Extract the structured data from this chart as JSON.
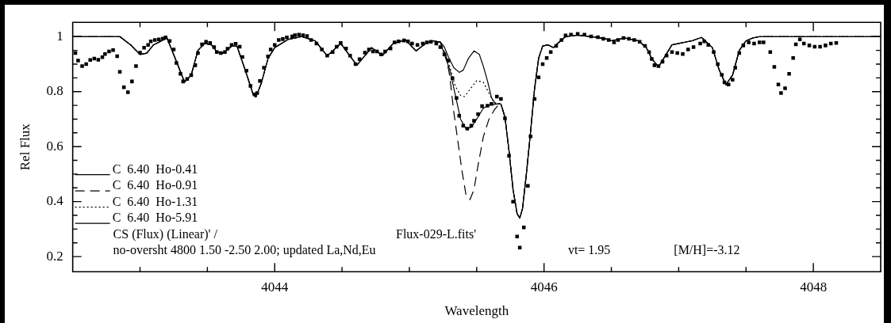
{
  "chart_data": {
    "type": "line",
    "xlabel": "Wavelength",
    "ylabel": "Rel Flux",
    "xlim": [
      4042.5,
      4048.5
    ],
    "ylim": [
      0.145,
      1.052
    ],
    "xticks": [
      {
        "value": 4043,
        "label": null
      },
      {
        "value": 4043.5,
        "label": null
      },
      4044,
      {
        "value": 4044.5,
        "label": null
      },
      {
        "value": 4045,
        "label": null
      },
      {
        "value": 4045.5,
        "label": null
      },
      4046,
      {
        "value": 4046.5,
        "label": null
      },
      {
        "value": 4047,
        "label": null
      },
      {
        "value": 4047.5,
        "label": null
      },
      4048
    ],
    "yticks": [
      0.2,
      {
        "value": 0.25,
        "label": null
      },
      {
        "value": 0.3,
        "label": null
      },
      {
        "value": 0.35,
        "label": null
      },
      0.4,
      {
        "value": 0.45,
        "label": null
      },
      {
        "value": 0.5,
        "label": null
      },
      {
        "value": 0.55,
        "label": null
      },
      0.6,
      {
        "value": 0.65,
        "label": null
      },
      {
        "value": 0.7,
        "label": null
      },
      {
        "value": 0.75,
        "label": null
      },
      0.8,
      {
        "value": 0.85,
        "label": null
      },
      {
        "value": 0.9,
        "label": null
      },
      {
        "value": 0.95,
        "label": null
      },
      1
    ],
    "grid": false,
    "legend": "bottom left",
    "annotations": [
      "CS (Flux) (Linear)' /",
      "Flux-029-L.fits'",
      "no-oversht 4800 1.50 -2.50 2.00; updated La,Nd,Eu",
      "vt= 1.95",
      "[M/H]=-3.12"
    ],
    "series": [
      {
        "type": "scatter",
        "marker": "square",
        "color": "#000000",
        "x": [
          4042.52,
          4042.54,
          4042.57,
          4042.6,
          4042.63,
          4042.66,
          4042.69,
          4042.72,
          4042.74,
          4042.77,
          4042.8,
          4042.83,
          4042.85,
          4042.88,
          4042.91,
          4042.94,
          4042.97,
          4043.0,
          4043.03,
          4043.06,
          4043.08,
          4043.11,
          4043.14,
          4043.17,
          4043.19,
          4043.22,
          4043.25,
          4043.27,
          4043.3,
          4043.32,
          4043.35,
          4043.38,
          4043.41,
          4043.43,
          4043.46,
          4043.49,
          4043.52,
          4043.55,
          4043.57,
          4043.6,
          4043.63,
          4043.65,
          4043.68,
          4043.71,
          4043.74,
          4043.76,
          4043.79,
          4043.82,
          4043.85,
          4043.87,
          4043.89,
          4043.92,
          4043.95,
          4043.97,
          4044.0,
          4044.03,
          4044.06,
          4044.09,
          4044.13,
          4044.15,
          4044.18,
          4044.21,
          4044.24,
          4044.27,
          4044.31,
          4044.35,
          4044.39,
          4044.43,
          4044.46,
          4044.49,
          4044.53,
          4044.56,
          4044.6,
          4044.63,
          4044.67,
          4044.7,
          4044.73,
          4044.76,
          4044.79,
          4044.82,
          4044.86,
          4044.89,
          4044.92,
          4044.96,
          4044.99,
          4045.02,
          4045.06,
          4045.1,
          4045.13,
          4045.16,
          4045.2,
          4045.23,
          4045.26,
          4045.29,
          4045.32,
          4045.35,
          4045.37,
          4045.4,
          4045.43,
          4045.46,
          4045.48,
          4045.51,
          4045.54,
          4045.58,
          4045.61,
          4045.65,
          4045.68,
          4045.71,
          4045.74,
          4045.77,
          4045.8,
          4045.82,
          4045.85,
          4045.88,
          4045.9,
          4045.93,
          4045.96,
          4045.99,
          4046.02,
          4046.05,
          4046.09,
          4046.13,
          4046.16,
          4046.2,
          4046.25,
          4046.3,
          4046.35,
          4046.4,
          4046.44,
          4046.48,
          4046.52,
          4046.55,
          4046.59,
          4046.63,
          4046.67,
          4046.71,
          4046.75,
          4046.78,
          4046.8,
          4046.82,
          4046.85,
          4046.88,
          4046.91,
          4046.95,
          4046.99,
          4047.03,
          4047.07,
          4047.11,
          4047.16,
          4047.19,
          4047.22,
          4047.26,
          4047.29,
          4047.32,
          4047.34,
          4047.37,
          4047.4,
          4047.42,
          4047.45,
          4047.48,
          4047.52,
          4047.56,
          4047.6,
          4047.63,
          4047.68,
          4047.71,
          4047.74,
          4047.76,
          4047.79,
          4047.82,
          4047.85,
          4047.87,
          4047.9,
          4047.93,
          4047.97,
          4048.01,
          4048.05,
          4048.09,
          4048.13,
          4048.17
        ],
        "values": [
          0.94,
          0.913,
          0.893,
          0.9,
          0.915,
          0.92,
          0.916,
          0.925,
          0.937,
          0.946,
          0.951,
          0.929,
          0.872,
          0.816,
          0.798,
          0.837,
          0.893,
          0.942,
          0.96,
          0.97,
          0.983,
          0.988,
          0.99,
          0.993,
          0.997,
          0.984,
          0.953,
          0.904,
          0.865,
          0.837,
          0.846,
          0.86,
          0.896,
          0.94,
          0.972,
          0.981,
          0.977,
          0.962,
          0.944,
          0.94,
          0.944,
          0.956,
          0.97,
          0.974,
          0.963,
          0.926,
          0.876,
          0.821,
          0.79,
          0.795,
          0.839,
          0.887,
          0.928,
          0.953,
          0.97,
          0.988,
          0.991,
          0.997,
          1.001,
          1.005,
          1.007,
          1.005,
          1.002,
          0.988,
          0.975,
          0.953,
          0.931,
          0.944,
          0.963,
          0.977,
          0.957,
          0.931,
          0.9,
          0.918,
          0.942,
          0.953,
          0.946,
          0.946,
          0.935,
          0.946,
          0.957,
          0.979,
          0.983,
          0.986,
          0.983,
          0.975,
          0.97,
          0.975,
          0.979,
          0.981,
          0.975,
          0.962,
          0.935,
          0.913,
          0.849,
          0.777,
          0.712,
          0.676,
          0.665,
          0.676,
          0.694,
          0.718,
          0.747,
          0.749,
          0.755,
          0.782,
          0.773,
          0.703,
          0.567,
          0.4,
          0.273,
          0.233,
          0.306,
          0.457,
          0.637,
          0.773,
          0.852,
          0.9,
          0.922,
          0.944,
          0.966,
          0.988,
          1.004,
          1.007,
          1.01,
          1.007,
          1.001,
          0.998,
          0.992,
          0.988,
          0.979,
          0.988,
          0.995,
          0.992,
          0.988,
          0.981,
          0.966,
          0.944,
          0.919,
          0.896,
          0.893,
          0.909,
          0.931,
          0.944,
          0.94,
          0.937,
          0.953,
          0.962,
          0.975,
          0.983,
          0.97,
          0.944,
          0.9,
          0.861,
          0.834,
          0.826,
          0.843,
          0.887,
          0.94,
          0.968,
          0.979,
          0.975,
          0.979,
          0.979,
          0.944,
          0.89,
          0.826,
          0.795,
          0.812,
          0.865,
          0.922,
          0.972,
          0.99,
          0.975,
          0.968,
          0.963,
          0.963,
          0.968,
          0.975,
          0.977
        ]
      },
      {
        "name": "C  6.40  Ho-0.41",
        "line_style": "solid",
        "color": "#000000",
        "x": [
          4042.5,
          4042.85,
          4042.93,
          4043.0,
          4043.05,
          4043.1,
          4043.2,
          4043.27,
          4043.33,
          4043.38,
          4043.43,
          4043.48,
          4043.53,
          4043.57,
          4043.62,
          4043.68,
          4043.72,
          4043.78,
          4043.84,
          4043.86,
          4043.9,
          4043.95,
          4044.0,
          4044.1,
          4044.2,
          4044.3,
          4044.39,
          4044.49,
          4044.61,
          4044.72,
          4044.8,
          4044.88,
          4044.97,
          4045.05,
          4045.12,
          4045.17,
          4045.23,
          4045.26,
          4045.3,
          4045.34,
          4045.38,
          4045.42,
          4045.46,
          4045.5,
          4045.55,
          4045.6,
          4045.65,
          4045.68,
          4045.71,
          4045.74,
          4045.77,
          4045.8,
          4045.82,
          4045.84,
          4045.87,
          4045.9,
          4045.93,
          4045.96,
          4045.99,
          4046.03,
          4046.07,
          4046.1,
          4046.16,
          4046.25,
          4046.35,
          4046.45,
          4046.5,
          4046.55,
          4046.6,
          4046.7,
          4046.76,
          4046.8,
          4046.85,
          4046.9,
          4046.95,
          4047.1,
          4047.17,
          4047.25,
          4047.3,
          4047.35,
          4047.4,
          4047.45,
          4047.5,
          4047.55,
          4047.6,
          4047.7,
          4048.5
        ],
        "values": [
          1.0,
          1.0,
          0.97,
          0.935,
          0.94,
          0.97,
          0.995,
          0.91,
          0.835,
          0.86,
          0.95,
          0.975,
          0.97,
          0.945,
          0.94,
          0.965,
          0.965,
          0.88,
          0.79,
          0.78,
          0.83,
          0.92,
          0.96,
          0.99,
          1.0,
          0.985,
          0.93,
          0.975,
          0.896,
          0.96,
          0.931,
          0.975,
          0.988,
          0.948,
          0.975,
          0.985,
          0.98,
          0.935,
          0.88,
          0.79,
          0.7,
          0.665,
          0.67,
          0.7,
          0.74,
          0.752,
          0.755,
          0.755,
          0.707,
          0.584,
          0.444,
          0.356,
          0.34,
          0.374,
          0.505,
          0.654,
          0.812,
          0.922,
          0.966,
          0.97,
          0.96,
          0.975,
          1.0,
          1.005,
          1.0,
          0.993,
          0.985,
          0.99,
          0.995,
          0.985,
          0.96,
          0.92,
          0.89,
          0.93,
          0.97,
          0.985,
          0.997,
          0.96,
          0.88,
          0.825,
          0.86,
          0.95,
          0.985,
          0.995,
          1.0,
          1.0,
          1.0
        ]
      },
      {
        "name": "C  6.40  Ho-0.91",
        "line_style": "dashed",
        "color": "#000000",
        "x": [
          4042.5,
          4042.85,
          4042.93,
          4043.0,
          4043.05,
          4043.1,
          4043.2,
          4043.27,
          4043.33,
          4043.38,
          4043.43,
          4043.48,
          4043.53,
          4043.57,
          4043.62,
          4043.68,
          4043.72,
          4043.78,
          4043.84,
          4043.86,
          4043.9,
          4043.95,
          4044.0,
          4044.1,
          4044.2,
          4044.3,
          4044.39,
          4044.49,
          4044.61,
          4044.72,
          4044.8,
          4044.88,
          4044.97,
          4045.05,
          4045.12,
          4045.17,
          4045.23,
          4045.27,
          4045.3,
          4045.33,
          4045.36,
          4045.39,
          4045.42,
          4045.45,
          4045.48,
          4045.51,
          4045.55,
          4045.59,
          4045.63,
          4045.66,
          4045.68,
          4045.71,
          4045.74,
          4045.77,
          4045.8,
          4045.82,
          4045.84,
          4045.87,
          4045.9,
          4045.93,
          4045.96,
          4045.99,
          4046.03,
          4046.07,
          4046.1,
          4046.16,
          4046.25,
          4046.35,
          4046.45,
          4046.5,
          4046.55,
          4046.6,
          4046.7,
          4046.76,
          4046.8,
          4046.85,
          4046.9,
          4046.95,
          4047.1,
          4047.17,
          4047.25,
          4047.3,
          4047.35,
          4047.4,
          4047.45,
          4047.5,
          4047.55,
          4047.6,
          4047.7,
          4048.5
        ],
        "values": [
          1.0,
          1.0,
          0.97,
          0.935,
          0.94,
          0.97,
          0.995,
          0.91,
          0.835,
          0.86,
          0.95,
          0.975,
          0.97,
          0.945,
          0.94,
          0.965,
          0.965,
          0.88,
          0.79,
          0.78,
          0.83,
          0.92,
          0.96,
          0.99,
          1.0,
          0.985,
          0.93,
          0.975,
          0.896,
          0.96,
          0.931,
          0.975,
          0.988,
          0.948,
          0.975,
          0.985,
          0.98,
          0.935,
          0.856,
          0.725,
          0.62,
          0.514,
          0.426,
          0.407,
          0.444,
          0.532,
          0.637,
          0.698,
          0.733,
          0.751,
          0.755,
          0.707,
          0.584,
          0.444,
          0.356,
          0.34,
          0.374,
          0.505,
          0.654,
          0.812,
          0.922,
          0.966,
          0.97,
          0.96,
          0.975,
          1.0,
          1.005,
          1.0,
          0.993,
          0.985,
          0.99,
          0.995,
          0.985,
          0.96,
          0.92,
          0.89,
          0.93,
          0.97,
          0.985,
          0.997,
          0.96,
          0.88,
          0.825,
          0.86,
          0.95,
          0.985,
          0.995,
          1.0,
          1.0,
          1.0
        ]
      },
      {
        "name": "C  6.40  Ho-1.31",
        "line_style": "dotted",
        "color": "#000000",
        "x": [
          4042.5,
          4042.85,
          4042.93,
          4043.0,
          4043.05,
          4043.1,
          4043.2,
          4043.27,
          4043.33,
          4043.38,
          4043.43,
          4043.48,
          4043.53,
          4043.57,
          4043.62,
          4043.68,
          4043.72,
          4043.78,
          4043.84,
          4043.86,
          4043.9,
          4043.95,
          4044.0,
          4044.1,
          4044.2,
          4044.3,
          4044.39,
          4044.49,
          4044.61,
          4044.72,
          4044.8,
          4044.88,
          4044.97,
          4045.05,
          4045.12,
          4045.17,
          4045.23,
          4045.26,
          4045.3,
          4045.34,
          4045.38,
          4045.41,
          4045.45,
          4045.5,
          4045.55,
          4045.59,
          4045.63,
          4045.68,
          4045.71,
          4045.74,
          4045.77,
          4045.8,
          4045.82,
          4045.84,
          4045.87,
          4045.9,
          4045.93,
          4045.96,
          4045.99,
          4046.03,
          4046.07,
          4046.1,
          4046.16,
          4046.25,
          4046.35,
          4046.45,
          4046.5,
          4046.55,
          4046.6,
          4046.7,
          4046.76,
          4046.8,
          4046.85,
          4046.9,
          4046.95,
          4047.1,
          4047.17,
          4047.25,
          4047.3,
          4047.35,
          4047.4,
          4047.45,
          4047.5,
          4047.55,
          4047.6,
          4047.7,
          4048.5
        ],
        "values": [
          1.0,
          1.0,
          0.97,
          0.935,
          0.94,
          0.97,
          0.995,
          0.91,
          0.835,
          0.86,
          0.95,
          0.975,
          0.97,
          0.945,
          0.94,
          0.965,
          0.965,
          0.88,
          0.79,
          0.78,
          0.83,
          0.92,
          0.96,
          0.99,
          1.0,
          0.985,
          0.93,
          0.975,
          0.896,
          0.96,
          0.931,
          0.975,
          0.988,
          0.948,
          0.975,
          0.985,
          0.98,
          0.945,
          0.891,
          0.821,
          0.786,
          0.782,
          0.808,
          0.84,
          0.834,
          0.795,
          0.76,
          0.755,
          0.707,
          0.584,
          0.444,
          0.356,
          0.34,
          0.374,
          0.505,
          0.654,
          0.812,
          0.922,
          0.966,
          0.97,
          0.96,
          0.975,
          1.0,
          1.005,
          1.0,
          0.993,
          0.985,
          0.99,
          0.995,
          0.985,
          0.96,
          0.92,
          0.89,
          0.93,
          0.97,
          0.985,
          0.997,
          0.96,
          0.88,
          0.825,
          0.86,
          0.95,
          0.985,
          0.995,
          1.0,
          1.0,
          1.0
        ]
      },
      {
        "name": "C  6.40  Ho-5.91",
        "line_style": "solid",
        "color": "#000000",
        "x": [
          4042.5,
          4042.85,
          4042.93,
          4043.0,
          4043.05,
          4043.1,
          4043.2,
          4043.27,
          4043.33,
          4043.38,
          4043.43,
          4043.48,
          4043.53,
          4043.57,
          4043.62,
          4043.68,
          4043.72,
          4043.78,
          4043.84,
          4043.86,
          4043.9,
          4043.95,
          4044.0,
          4044.1,
          4044.2,
          4044.3,
          4044.39,
          4044.49,
          4044.61,
          4044.72,
          4044.8,
          4044.88,
          4044.97,
          4045.05,
          4045.12,
          4045.17,
          4045.23,
          4045.26,
          4045.29,
          4045.33,
          4045.37,
          4045.4,
          4045.44,
          4045.48,
          4045.52,
          4045.55,
          4045.58,
          4045.61,
          4045.64,
          4045.68,
          4045.71,
          4045.74,
          4045.77,
          4045.8,
          4045.82,
          4045.84,
          4045.87,
          4045.9,
          4045.93,
          4045.96,
          4045.99,
          4046.03,
          4046.07,
          4046.1,
          4046.16,
          4046.25,
          4046.35,
          4046.45,
          4046.5,
          4046.55,
          4046.6,
          4046.7,
          4046.76,
          4046.8,
          4046.85,
          4046.9,
          4046.95,
          4047.1,
          4047.17,
          4047.25,
          4047.3,
          4047.35,
          4047.4,
          4047.45,
          4047.5,
          4047.55,
          4047.6,
          4047.7,
          4048.5
        ],
        "values": [
          1.0,
          1.0,
          0.97,
          0.935,
          0.94,
          0.97,
          0.995,
          0.91,
          0.835,
          0.86,
          0.95,
          0.975,
          0.97,
          0.945,
          0.94,
          0.965,
          0.965,
          0.88,
          0.79,
          0.78,
          0.83,
          0.92,
          0.96,
          0.99,
          1.0,
          0.985,
          0.93,
          0.975,
          0.896,
          0.96,
          0.931,
          0.975,
          0.988,
          0.948,
          0.975,
          0.985,
          0.98,
          0.962,
          0.926,
          0.887,
          0.87,
          0.878,
          0.922,
          0.948,
          0.935,
          0.891,
          0.839,
          0.777,
          0.755,
          0.755,
          0.707,
          0.584,
          0.444,
          0.356,
          0.34,
          0.374,
          0.505,
          0.654,
          0.812,
          0.922,
          0.966,
          0.97,
          0.96,
          0.975,
          1.0,
          1.005,
          1.0,
          0.993,
          0.985,
          0.99,
          0.995,
          0.985,
          0.96,
          0.92,
          0.89,
          0.93,
          0.97,
          0.985,
          0.997,
          0.96,
          0.88,
          0.825,
          0.86,
          0.95,
          0.985,
          0.995,
          1.0,
          1.0,
          1.0
        ]
      }
    ]
  }
}
